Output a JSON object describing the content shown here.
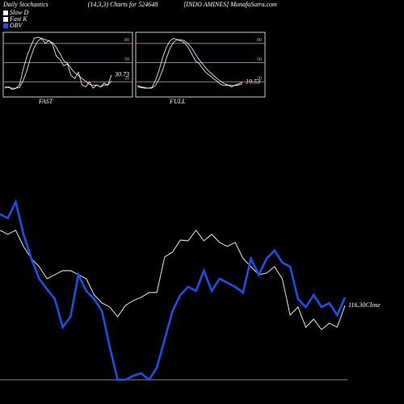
{
  "header": {
    "left": "Daily Stochastics",
    "center": "(14,3,3) Charts for 524648",
    "right": "[INDO AMINES] MunafaSutra.com"
  },
  "chart_data": [
    {
      "type": "line",
      "title": "FAST",
      "ylim": [
        0,
        100
      ],
      "yticks": [
        20,
        50,
        80
      ],
      "end_label": "30.73",
      "series": [
        {
          "name": "Fast K",
          "color": "#ffffff",
          "values": [
            10,
            12,
            8,
            10,
            15,
            40,
            60,
            75,
            88,
            90,
            88,
            80,
            85,
            78,
            60,
            55,
            45,
            48,
            30,
            25,
            35,
            15,
            12,
            20,
            10,
            15,
            12,
            18,
            15,
            30.73
          ]
        },
        {
          "name": "Slow D",
          "color": "#ffffff",
          "values": [
            12,
            11,
            10,
            10,
            11,
            22,
            38,
            58,
            74,
            84,
            88,
            86,
            84,
            81,
            74,
            64,
            53,
            49,
            41,
            34,
            30,
            25,
            21,
            16,
            14,
            15,
            12,
            15,
            15,
            21
          ]
        }
      ]
    },
    {
      "type": "line",
      "title": "FULL",
      "ylim": [
        0,
        100
      ],
      "yticks": [
        20,
        50,
        80
      ],
      "end_label": "19.53",
      "series": [
        {
          "color": "#ffffff",
          "values": [
            12,
            11,
            10,
            10,
            11,
            22,
            38,
            58,
            74,
            84,
            88,
            86,
            84,
            81,
            74,
            64,
            53,
            49,
            41,
            34,
            30,
            25,
            21,
            16,
            14,
            15,
            12,
            15,
            17,
            19.53
          ]
        },
        {
          "color": "#ffffff",
          "values": [
            14,
            12,
            11,
            10,
            10,
            14,
            24,
            39,
            57,
            72,
            82,
            86,
            86,
            84,
            80,
            73,
            64,
            55,
            48,
            41,
            35,
            30,
            25,
            21,
            17,
            15,
            14,
            14,
            15,
            17
          ]
        }
      ]
    },
    {
      "type": "line",
      "ylim": [
        95.9,
        145.9
      ],
      "y2lim": [
        0,
        250
      ],
      "end_label": "116.30Close",
      "series": [
        {
          "color": "#ffffff",
          "values": [
            134.9,
            133.9,
            134.9,
            130.9,
            127.9,
            125.9,
            122.9,
            123.9,
            124.9,
            124.9,
            123.9,
            122.9,
            118.9,
            116.9,
            115.9,
            113.5,
            116.3,
            117.5,
            118.3,
            119.5,
            119.5,
            128.3,
            129.5,
            132.5,
            132.3,
            134.9,
            132.3,
            133.9,
            131.9,
            130.9,
            131.9,
            127.9,
            125.9,
            123.9,
            124.3,
            125.9,
            122.9,
            113.9,
            115.9,
            110.9,
            112.9,
            110.3,
            111.9,
            110.9,
            116.3
          ]
        },
        {
          "name": "OBV",
          "color": "#1f4fe6",
          "axis": "y2",
          "values": [
            215,
            210,
            230,
            190,
            160,
            135,
            122,
            110,
            75,
            88,
            140,
            120,
            110,
            95,
            50,
            10,
            10,
            15,
            18,
            10,
            25,
            60,
            95,
            115,
            125,
            120,
            145,
            120,
            135,
            130,
            125,
            118,
            160,
            140,
            160,
            170,
            155,
            150,
            110,
            100,
            115,
            100,
            105,
            90,
            112
          ]
        }
      ]
    }
  ]
}
